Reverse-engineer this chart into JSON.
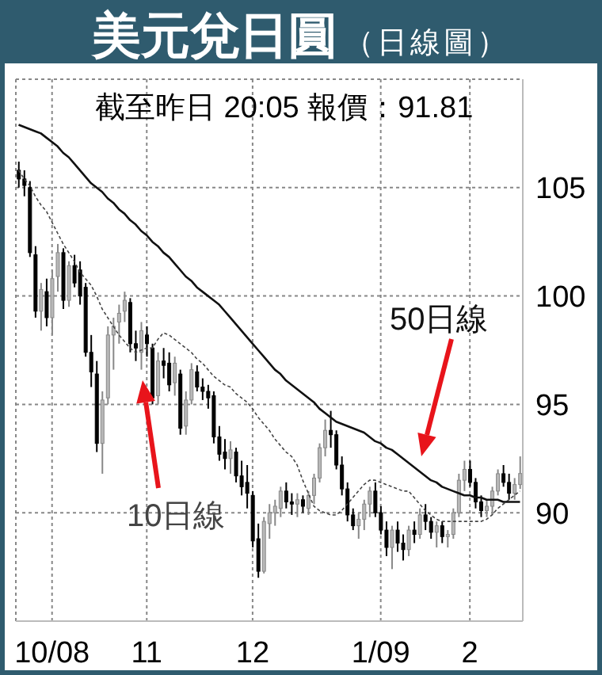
{
  "chart_data": {
    "type": "candlestick",
    "title": "美元兌日圓",
    "subtitle": "（日線圖）",
    "annotations": [
      "截至昨日 20:05 報價：91.81"
    ],
    "categories": [
      null,
      null,
      null,
      null,
      null,
      null,
      "10/08",
      null,
      null,
      null,
      null,
      null,
      null,
      null,
      null,
      null,
      null,
      null,
      null,
      null,
      null,
      null,
      null,
      "11",
      null,
      null,
      null,
      null,
      null,
      null,
      null,
      null,
      null,
      null,
      null,
      null,
      null,
      null,
      null,
      null,
      null,
      null,
      "12",
      null,
      null,
      null,
      null,
      null,
      null,
      null,
      null,
      null,
      null,
      null,
      null,
      null,
      null,
      null,
      null,
      null,
      null,
      null,
      null,
      null,
      null,
      "1/09",
      null,
      null,
      null,
      null,
      null,
      null,
      null,
      null,
      null,
      null,
      null,
      null,
      null,
      null,
      null,
      "2",
      null,
      null,
      null,
      null,
      null,
      null,
      null,
      null,
      null
    ],
    "ohlc": [
      [
        105.8,
        106.2,
        105.0,
        105.4
      ],
      [
        105.4,
        105.8,
        104.6,
        105.1
      ],
      [
        105.0,
        105.3,
        101.8,
        102.0
      ],
      [
        101.9,
        102.3,
        99.0,
        99.3
      ],
      [
        99.3,
        100.6,
        98.4,
        100.3
      ],
      [
        100.2,
        100.8,
        98.6,
        99.0
      ],
      [
        99.0,
        101.2,
        98.2,
        100.8
      ],
      [
        100.9,
        102.4,
        100.2,
        102.0
      ],
      [
        102.0,
        102.2,
        99.4,
        99.8
      ],
      [
        99.8,
        101.6,
        99.5,
        101.4
      ],
      [
        101.4,
        101.9,
        100.4,
        100.6
      ],
      [
        101.2,
        101.6,
        99.6,
        100.0
      ],
      [
        100.4,
        100.6,
        97.2,
        97.4
      ],
      [
        97.4,
        98.2,
        95.8,
        96.5
      ],
      [
        96.4,
        97.0,
        92.8,
        93.2
      ],
      [
        93.2,
        95.6,
        91.8,
        95.2
      ],
      [
        95.3,
        98.6,
        95.0,
        98.2
      ],
      [
        98.2,
        99.0,
        96.6,
        98.6
      ],
      [
        98.8,
        99.6,
        97.8,
        99.2
      ],
      [
        99.3,
        100.2,
        98.8,
        99.8
      ],
      [
        99.7,
        99.9,
        97.4,
        97.8
      ],
      [
        97.8,
        98.4,
        97.0,
        97.6
      ],
      [
        97.4,
        98.8,
        96.6,
        98.4
      ],
      [
        98.2,
        98.6,
        97.2,
        97.8
      ],
      [
        97.6,
        97.8,
        95.0,
        95.3
      ],
      [
        95.4,
        97.4,
        95.0,
        97.0
      ],
      [
        97.0,
        97.6,
        96.2,
        96.8
      ],
      [
        96.9,
        97.4,
        95.6,
        95.9
      ],
      [
        96.0,
        97.2,
        95.4,
        96.9
      ],
      [
        96.4,
        96.6,
        93.6,
        93.9
      ],
      [
        94.0,
        95.6,
        93.6,
        95.2
      ],
      [
        95.2,
        96.9,
        95.0,
        96.6
      ],
      [
        96.5,
        96.8,
        95.6,
        95.8
      ],
      [
        95.8,
        96.2,
        95.2,
        95.6
      ],
      [
        95.6,
        95.9,
        94.8,
        95.3
      ],
      [
        95.4,
        95.6,
        93.2,
        93.5
      ],
      [
        93.5,
        94.0,
        92.4,
        92.7
      ],
      [
        92.8,
        93.4,
        92.0,
        92.5
      ],
      [
        92.5,
        93.3,
        91.8,
        92.9
      ],
      [
        92.8,
        93.0,
        91.4,
        91.7
      ],
      [
        91.7,
        92.4,
        90.8,
        91.2
      ],
      [
        91.4,
        92.2,
        90.2,
        90.9
      ],
      [
        90.8,
        91.0,
        88.4,
        88.7
      ],
      [
        88.8,
        89.5,
        87.0,
        87.3
      ],
      [
        87.3,
        89.8,
        87.2,
        89.6
      ],
      [
        89.5,
        90.4,
        88.8,
        90.0
      ],
      [
        90.0,
        90.6,
        89.4,
        90.3
      ],
      [
        90.2,
        91.2,
        89.8,
        91.0
      ],
      [
        91.0,
        91.4,
        90.2,
        90.5
      ],
      [
        90.5,
        90.9,
        89.9,
        90.4
      ],
      [
        90.4,
        90.9,
        89.8,
        90.6
      ],
      [
        90.6,
        90.8,
        90.0,
        90.3
      ],
      [
        90.2,
        91.0,
        89.9,
        90.8
      ],
      [
        90.8,
        91.8,
        90.4,
        91.6
      ],
      [
        91.6,
        93.2,
        91.4,
        93.0
      ],
      [
        93.0,
        94.3,
        92.6,
        93.8
      ],
      [
        93.8,
        94.7,
        93.0,
        93.6
      ],
      [
        93.6,
        93.8,
        92.0,
        92.2
      ],
      [
        92.2,
        92.6,
        90.8,
        91.1
      ],
      [
        91.1,
        91.4,
        89.6,
        89.9
      ],
      [
        89.9,
        90.2,
        89.2,
        89.4
      ],
      [
        89.4,
        90.0,
        88.8,
        89.7
      ],
      [
        89.7,
        90.6,
        89.2,
        90.4
      ],
      [
        90.4,
        91.2,
        89.8,
        91.0
      ],
      [
        91.0,
        91.4,
        89.8,
        90.0
      ],
      [
        90.0,
        90.3,
        89.0,
        89.2
      ],
      [
        89.2,
        89.6,
        88.0,
        88.4
      ],
      [
        88.4,
        89.4,
        87.4,
        89.2
      ],
      [
        89.2,
        89.6,
        88.2,
        88.6
      ],
      [
        88.6,
        89.0,
        87.8,
        88.3
      ],
      [
        88.3,
        89.4,
        88.0,
        89.2
      ],
      [
        89.2,
        89.6,
        88.6,
        89.0
      ],
      [
        89.0,
        90.2,
        88.8,
        89.9
      ],
      [
        89.9,
        90.4,
        89.2,
        89.6
      ],
      [
        89.6,
        89.8,
        88.8,
        89.1
      ],
      [
        89.1,
        89.6,
        88.4,
        89.4
      ],
      [
        89.4,
        89.6,
        88.6,
        88.9
      ],
      [
        88.9,
        89.2,
        88.4,
        89.0
      ],
      [
        89.0,
        90.2,
        88.8,
        90.0
      ],
      [
        90.0,
        91.8,
        89.8,
        91.5
      ],
      [
        91.5,
        92.4,
        91.0,
        92.0
      ],
      [
        92.0,
        92.4,
        91.2,
        91.4
      ],
      [
        91.4,
        91.6,
        90.2,
        90.5
      ],
      [
        90.5,
        90.8,
        89.8,
        90.1
      ],
      [
        90.1,
        90.6,
        89.8,
        90.3
      ],
      [
        90.3,
        91.2,
        89.9,
        91.0
      ],
      [
        91.0,
        92.0,
        90.8,
        91.8
      ],
      [
        91.8,
        92.2,
        91.2,
        91.4
      ],
      [
        91.4,
        91.8,
        90.6,
        90.9
      ],
      [
        90.9,
        91.6,
        90.6,
        91.3
      ],
      [
        91.3,
        92.6,
        91.1,
        91.81
      ]
    ],
    "series": [
      {
        "name": "10日線",
        "type": "line",
        "color": "#444444",
        "line_style": "dashed",
        "values": [
          105.8,
          105.4,
          105.1,
          104.6,
          104.2,
          103.9,
          103.4,
          102.9,
          102.4,
          102.0,
          101.6,
          101.1,
          100.8,
          100.5,
          100.0,
          99.4,
          99.0,
          98.6,
          98.2,
          97.9,
          97.6,
          97.4,
          97.5,
          97.6,
          97.6,
          98.0,
          98.3,
          98.2,
          98.0,
          97.8,
          97.6,
          97.4,
          97.1,
          96.9,
          96.6,
          96.3,
          96.1,
          95.9,
          95.8,
          95.5,
          95.3,
          95.1,
          94.8,
          94.4,
          94.1,
          93.8,
          93.4,
          93.1,
          92.8,
          92.6,
          92.2,
          91.5,
          90.9,
          90.3,
          90.1,
          90.0,
          89.9,
          89.9,
          90.1,
          90.4,
          90.7,
          91.0,
          91.3,
          91.5,
          91.5,
          91.4,
          91.3,
          91.2,
          91.1,
          91.0,
          91.0,
          90.7,
          90.4,
          90.1,
          89.9,
          89.7,
          89.6,
          89.6,
          89.6,
          89.6,
          89.6,
          89.6,
          89.6,
          89.6,
          89.7,
          89.9,
          90.2,
          90.4,
          90.6,
          90.8,
          91.0
        ]
      },
      {
        "name": "50日線",
        "type": "line",
        "color": "#111111",
        "line_style": "solid",
        "values": [
          107.9,
          107.8,
          107.7,
          107.6,
          107.5,
          107.3,
          107.1,
          106.9,
          106.6,
          106.4,
          106.1,
          105.8,
          105.5,
          105.2,
          105.0,
          104.8,
          104.5,
          104.3,
          104.0,
          103.8,
          103.5,
          103.3,
          103.0,
          102.8,
          102.5,
          102.3,
          102.0,
          101.8,
          101.5,
          101.2,
          100.9,
          100.7,
          100.4,
          100.2,
          100.0,
          99.8,
          99.6,
          99.3,
          99.0,
          98.7,
          98.4,
          98.1,
          97.8,
          97.5,
          97.2,
          96.9,
          96.6,
          96.4,
          96.1,
          95.9,
          95.7,
          95.5,
          95.3,
          95.1,
          94.8,
          94.6,
          94.4,
          94.2,
          94.1,
          94.0,
          93.9,
          93.8,
          93.7,
          93.5,
          93.3,
          93.2,
          93.0,
          92.9,
          92.7,
          92.5,
          92.3,
          92.1,
          91.9,
          91.7,
          91.5,
          91.4,
          91.2,
          91.1,
          91.0,
          90.9,
          90.8,
          90.8,
          90.7,
          90.7,
          90.6,
          90.6,
          90.6,
          90.5,
          90.5,
          90.5,
          90.5
        ]
      }
    ],
    "ylim": [
      85,
      110
    ],
    "yticks": [
      90,
      95,
      100,
      105
    ],
    "grid": true,
    "legend": false,
    "marker": "none"
  }
}
